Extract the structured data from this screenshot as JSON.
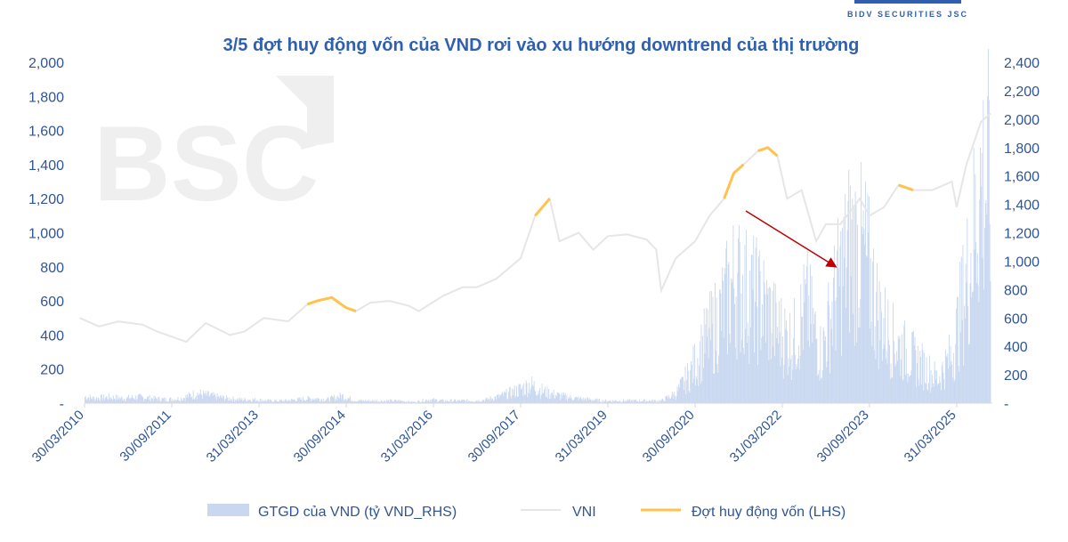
{
  "logo": {
    "text": "BIDV SECURITIES JSC",
    "watermark": "BSC"
  },
  "chart_data": {
    "type": "bar+line",
    "title": "3/5 đợt huy động vốn của VND rơi vào xu hướng downtrend của thị trường",
    "ylim_left": [
      0,
      2000
    ],
    "ylim_right": [
      0,
      2400
    ],
    "yticks_left": [
      "-",
      "200",
      "400",
      "600",
      "800",
      "1,000",
      "1,200",
      "1,400",
      "1,600",
      "1,800",
      "2,000"
    ],
    "yticks_right": [
      "-",
      "200",
      "400",
      "600",
      "800",
      "1,000",
      "1,200",
      "1,400",
      "1,600",
      "1,800",
      "2,000",
      "2,200",
      "2,400"
    ],
    "xticks": [
      "30/03/2010",
      "30/09/2011",
      "31/03/2013",
      "30/09/2014",
      "31/03/2016",
      "30/09/2017",
      "31/03/2019",
      "30/09/2020",
      "31/03/2022",
      "30/09/2023",
      "31/03/2025"
    ],
    "xrange": [
      "2010-03",
      "2025-11"
    ],
    "grid": false,
    "legend_position": "bottom",
    "colors": {
      "bars": "#c9d8f0",
      "vni": "#e6e6e6",
      "raise": "#ffc24d",
      "text": "#2f5597",
      "arrow": "#c00000"
    },
    "series": [
      {
        "name": "GTGD của VND (tỷ VND_RHS)",
        "type": "bar",
        "axis": "right",
        "points": [
          [
            "2010-03",
            60
          ],
          [
            "2010-06",
            40
          ],
          [
            "2010-09",
            50
          ],
          [
            "2010-12",
            40
          ],
          [
            "2011-03",
            50
          ],
          [
            "2011-06",
            40
          ],
          [
            "2011-09",
            30
          ],
          [
            "2011-12",
            40
          ],
          [
            "2012-03",
            80
          ],
          [
            "2012-06",
            60
          ],
          [
            "2012-09",
            40
          ],
          [
            "2012-12",
            30
          ],
          [
            "2013-03",
            30
          ],
          [
            "2013-06",
            20
          ],
          [
            "2013-09",
            20
          ],
          [
            "2013-12",
            30
          ],
          [
            "2014-03",
            40
          ],
          [
            "2014-06",
            30
          ],
          [
            "2014-09",
            60
          ],
          [
            "2014-12",
            20
          ],
          [
            "2015-03",
            20
          ],
          [
            "2015-06",
            20
          ],
          [
            "2015-09",
            20
          ],
          [
            "2015-12",
            10
          ],
          [
            "2016-03",
            30
          ],
          [
            "2016-06",
            20
          ],
          [
            "2016-09",
            20
          ],
          [
            "2016-12",
            20
          ],
          [
            "2017-03",
            30
          ],
          [
            "2017-06",
            60
          ],
          [
            "2017-09",
            100
          ],
          [
            "2017-12",
            150
          ],
          [
            "2018-03",
            90
          ],
          [
            "2018-06",
            60
          ],
          [
            "2018-09",
            40
          ],
          [
            "2018-12",
            30
          ],
          [
            "2019-03",
            20
          ],
          [
            "2019-06",
            20
          ],
          [
            "2019-09",
            20
          ],
          [
            "2019-12",
            20
          ],
          [
            "2020-03",
            20
          ],
          [
            "2020-06",
            80
          ],
          [
            "2020-09",
            250
          ],
          [
            "2020-12",
            500
          ],
          [
            "2021-03",
            700
          ],
          [
            "2021-06",
            1000
          ],
          [
            "2021-09",
            900
          ],
          [
            "2021-12",
            800
          ],
          [
            "2022-03",
            600
          ],
          [
            "2022-06",
            500
          ],
          [
            "2022-09",
            800
          ],
          [
            "2022-12",
            400
          ],
          [
            "2023-03",
            900
          ],
          [
            "2023-06",
            1300
          ],
          [
            "2023-09",
            1200
          ],
          [
            "2023-12",
            700
          ],
          [
            "2024-03",
            500
          ],
          [
            "2024-06",
            400
          ],
          [
            "2024-09",
            300
          ],
          [
            "2024-12",
            200
          ],
          [
            "2025-03",
            400
          ],
          [
            "2025-06",
            1000
          ],
          [
            "2025-09",
            1800
          ]
        ]
      },
      {
        "name": "VNI",
        "type": "line",
        "axis": "left",
        "points": [
          [
            "2010-03",
            500
          ],
          [
            "2010-07",
            450
          ],
          [
            "2010-11",
            480
          ],
          [
            "2011-04",
            460
          ],
          [
            "2011-07",
            420
          ],
          [
            "2011-11",
            380
          ],
          [
            "2012-01",
            360
          ],
          [
            "2012-05",
            470
          ],
          [
            "2012-10",
            400
          ],
          [
            "2013-01",
            420
          ],
          [
            "2013-05",
            500
          ],
          [
            "2013-10",
            480
          ],
          [
            "2014-02",
            580
          ],
          [
            "2014-04",
            600
          ],
          [
            "2014-07",
            620
          ],
          [
            "2014-10",
            560
          ],
          [
            "2014-12",
            540
          ],
          [
            "2015-03",
            590
          ],
          [
            "2015-07",
            600
          ],
          [
            "2015-11",
            570
          ],
          [
            "2016-01",
            540
          ],
          [
            "2016-06",
            630
          ],
          [
            "2016-10",
            680
          ],
          [
            "2017-01",
            680
          ],
          [
            "2017-05",
            730
          ],
          [
            "2017-10",
            850
          ],
          [
            "2018-01",
            1100
          ],
          [
            "2018-04",
            1200
          ],
          [
            "2018-06",
            950
          ],
          [
            "2018-10",
            1000
          ],
          [
            "2019-01",
            900
          ],
          [
            "2019-04",
            980
          ],
          [
            "2019-08",
            990
          ],
          [
            "2019-12",
            960
          ],
          [
            "2020-02",
            900
          ],
          [
            "2020-03",
            660
          ],
          [
            "2020-06",
            850
          ],
          [
            "2020-10",
            950
          ],
          [
            "2021-01",
            1100
          ],
          [
            "2021-04",
            1200
          ],
          [
            "2021-06",
            1350
          ],
          [
            "2021-08",
            1400
          ],
          [
            "2021-11",
            1480
          ],
          [
            "2022-01",
            1500
          ],
          [
            "2022-03",
            1450
          ],
          [
            "2022-05",
            1200
          ],
          [
            "2022-08",
            1250
          ],
          [
            "2022-11",
            950
          ],
          [
            "2023-01",
            1050
          ],
          [
            "2023-04",
            1050
          ],
          [
            "2023-08",
            1200
          ],
          [
            "2023-10",
            1100
          ],
          [
            "2024-01",
            1150
          ],
          [
            "2024-04",
            1280
          ],
          [
            "2024-07",
            1250
          ],
          [
            "2024-11",
            1250
          ],
          [
            "2025-03",
            1300
          ],
          [
            "2025-04",
            1150
          ],
          [
            "2025-06",
            1400
          ],
          [
            "2025-09",
            1650
          ],
          [
            "2025-11",
            1700
          ]
        ]
      },
      {
        "name": "Đợt huy động vốn (LHS)",
        "type": "line-highlight",
        "axis": "left",
        "periods": [
          [
            "2014-02",
            "2014-12"
          ],
          [
            "2017-12",
            "2018-05"
          ],
          [
            "2021-02",
            "2021-09"
          ],
          [
            "2021-11",
            "2022-03"
          ],
          [
            "2024-02",
            "2024-07"
          ]
        ]
      }
    ]
  }
}
